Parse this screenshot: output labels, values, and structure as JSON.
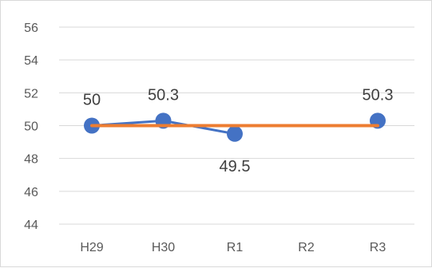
{
  "chart_data": {
    "type": "line",
    "categories": [
      "H29",
      "H30",
      "R1",
      "R2",
      "R3"
    ],
    "ylim": [
      44,
      56
    ],
    "yticks": [
      44,
      46,
      48,
      50,
      52,
      54,
      56
    ],
    "grid": true,
    "series": [
      {
        "values": [
          50,
          50.3,
          49.5,
          null,
          50.3
        ],
        "color": "#4472C4",
        "marker": "circle",
        "data_labels": [
          "50",
          "50.3",
          "49.5",
          null,
          "50.3"
        ],
        "data_label_positions": [
          "above",
          "above",
          "below",
          null,
          "above"
        ]
      },
      {
        "values": [
          50,
          50,
          50,
          50,
          50
        ],
        "color": "#ED7D31",
        "marker": "none"
      }
    ]
  },
  "colors": {
    "grid": "#d9d9d9",
    "axis_text": "#595959",
    "label_text": "#404040"
  }
}
